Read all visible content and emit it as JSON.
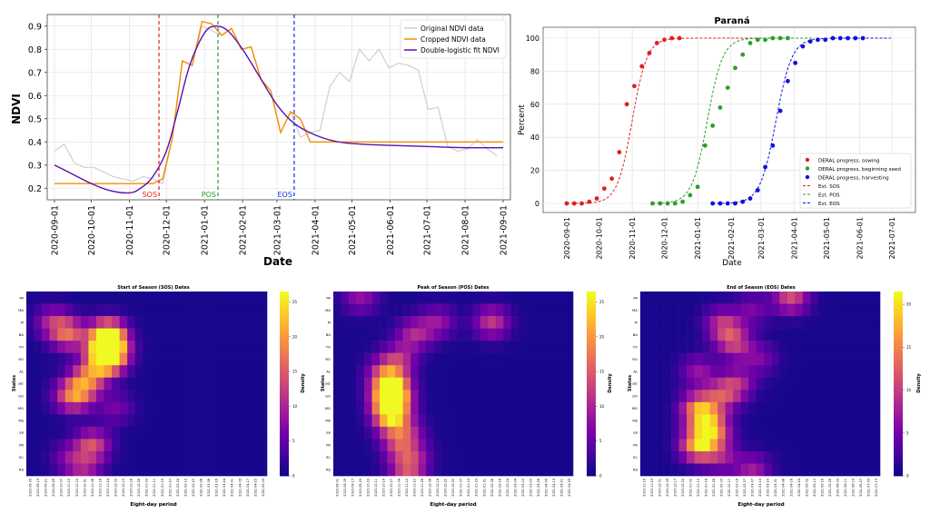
{
  "chart_data": [
    {
      "id": "ndvi",
      "type": "line",
      "xlabel": "Date",
      "ylabel": "NDVI",
      "ylim": [
        0.15,
        0.95
      ],
      "xlim": [
        "2020-09-01",
        "2021-09-01"
      ],
      "x_ticks": [
        "2020-09-01",
        "2020-10-01",
        "2020-11-01",
        "2020-12-01",
        "2021-01-01",
        "2021-02-01",
        "2021-03-01",
        "2021-04-01",
        "2021-05-01",
        "2021-06-01",
        "2021-07-01",
        "2021-08-01",
        "2021-09-01"
      ],
      "y_ticks": [
        0.2,
        0.3,
        0.4,
        0.5,
        0.6,
        0.7,
        0.8,
        0.9
      ],
      "legend_position": "top-right",
      "series": [
        {
          "name": "Original NDVI data",
          "color": "#cfcfcf",
          "x": [
            "2020-09-01",
            "2020-09-09",
            "2020-09-17",
            "2020-09-25",
            "2020-10-03",
            "2020-10-11",
            "2020-10-19",
            "2020-10-27",
            "2020-11-04",
            "2020-11-12",
            "2020-11-20",
            "2020-11-28",
            "2020-12-06",
            "2020-12-14",
            "2020-12-22",
            "2020-12-30",
            "2021-01-07",
            "2021-01-15",
            "2021-01-23",
            "2021-01-31",
            "2021-02-08",
            "2021-02-16",
            "2021-02-24",
            "2021-03-04",
            "2021-03-12",
            "2021-03-20",
            "2021-03-28",
            "2021-04-05",
            "2021-04-13",
            "2021-04-21",
            "2021-04-29",
            "2021-05-07",
            "2021-05-15",
            "2021-05-23",
            "2021-05-31",
            "2021-06-08",
            "2021-06-16",
            "2021-06-24",
            "2021-07-02",
            "2021-07-10",
            "2021-07-18",
            "2021-07-26",
            "2021-08-03",
            "2021-08-11",
            "2021-08-19",
            "2021-08-27"
          ],
          "y": [
            0.36,
            0.39,
            0.31,
            0.29,
            0.29,
            0.27,
            0.25,
            0.24,
            0.23,
            0.25,
            0.24,
            0.22,
            0.42,
            0.75,
            0.73,
            0.9,
            0.88,
            0.86,
            0.89,
            0.8,
            0.81,
            0.67,
            0.62,
            0.44,
            0.53,
            0.42,
            0.44,
            0.45,
            0.64,
            0.7,
            0.66,
            0.8,
            0.75,
            0.8,
            0.72,
            0.74,
            0.73,
            0.71,
            0.54,
            0.55,
            0.38,
            0.36,
            0.37,
            0.41,
            0.37,
            0.34
          ]
        },
        {
          "name": "Cropped NDVI data",
          "color": "#f28e00",
          "x": [
            "2020-09-01",
            "2020-11-20",
            "2020-11-28",
            "2020-12-06",
            "2020-12-14",
            "2020-12-22",
            "2020-12-30",
            "2021-01-07",
            "2021-01-15",
            "2021-01-23",
            "2021-01-31",
            "2021-02-08",
            "2021-02-16",
            "2021-02-24",
            "2021-03-04",
            "2021-03-12",
            "2021-03-20",
            "2021-03-28",
            "2021-09-01"
          ],
          "y": [
            0.22,
            0.22,
            0.24,
            0.42,
            0.75,
            0.73,
            0.92,
            0.91,
            0.86,
            0.89,
            0.8,
            0.81,
            0.67,
            0.62,
            0.44,
            0.53,
            0.5,
            0.4,
            0.4
          ]
        },
        {
          "name": "Double-logistic fit NDVI",
          "color": "#5b0fb0",
          "x": [
            "2020-09-01",
            "2020-09-16",
            "2020-10-01",
            "2020-10-16",
            "2020-11-01",
            "2020-11-10",
            "2020-11-20",
            "2020-12-01",
            "2020-12-10",
            "2020-12-20",
            "2021-01-01",
            "2021-01-10",
            "2021-01-20",
            "2021-02-01",
            "2021-02-15",
            "2021-03-01",
            "2021-03-15",
            "2021-04-01",
            "2021-04-20",
            "2021-05-10",
            "2021-06-01",
            "2021-07-01",
            "2021-08-01",
            "2021-09-01"
          ],
          "y": [
            0.3,
            0.26,
            0.22,
            0.19,
            0.18,
            0.2,
            0.25,
            0.36,
            0.53,
            0.73,
            0.87,
            0.9,
            0.88,
            0.8,
            0.68,
            0.56,
            0.48,
            0.43,
            0.4,
            0.39,
            0.385,
            0.38,
            0.375,
            0.375
          ]
        }
      ],
      "markers": [
        {
          "label": "SOS",
          "date": "2020-11-25",
          "color": "#e02020"
        },
        {
          "label": "POS",
          "date": "2021-01-12",
          "color": "#2a9a2a"
        },
        {
          "label": "EOS",
          "date": "2021-03-15",
          "color": "#1030e0"
        }
      ]
    },
    {
      "id": "parana",
      "type": "scatter",
      "title": "Paraná",
      "xlabel": "Date",
      "ylabel": "Percent",
      "ylim": [
        0,
        100
      ],
      "xlim": [
        "2020-09-01",
        "2021-07-01"
      ],
      "x_ticks": [
        "2020-09-01",
        "2020-10-01",
        "2020-11-01",
        "2020-12-01",
        "2021-01-01",
        "2021-02-01",
        "2021-03-01",
        "2021-04-01",
        "2021-05-01",
        "2021-06-01",
        "2021-07-01"
      ],
      "y_ticks": [
        0,
        20,
        40,
        60,
        80,
        100
      ],
      "legend_position": "lower-right",
      "series": [
        {
          "name": "DERAL progress, sowing",
          "color": "#e02020",
          "x": [
            "2020-09-01",
            "2020-09-08",
            "2020-09-15",
            "2020-09-22",
            "2020-09-29",
            "2020-10-06",
            "2020-10-13",
            "2020-10-20",
            "2020-10-27",
            "2020-11-03",
            "2020-11-10",
            "2020-11-17",
            "2020-11-24",
            "2020-12-01",
            "2020-12-08",
            "2020-12-15"
          ],
          "y": [
            0,
            0,
            0,
            1,
            3,
            9,
            15,
            31,
            60,
            71,
            83,
            91,
            97,
            99,
            100,
            100
          ]
        },
        {
          "name": "DERAL progress, beginning seed",
          "color": "#2aa02a",
          "x": [
            "2020-11-20",
            "2020-11-27",
            "2020-12-04",
            "2020-12-11",
            "2020-12-18",
            "2020-12-25",
            "2021-01-01",
            "2021-01-08",
            "2021-01-15",
            "2021-01-22",
            "2021-01-29",
            "2021-02-05",
            "2021-02-12",
            "2021-02-19",
            "2021-02-26",
            "2021-03-05",
            "2021-03-12",
            "2021-03-19",
            "2021-03-26"
          ],
          "y": [
            0,
            0,
            0,
            0,
            1,
            5,
            10,
            35,
            47,
            58,
            70,
            82,
            90,
            97,
            99,
            99,
            100,
            100,
            100
          ]
        },
        {
          "name": "DERAL progress, harvesting",
          "color": "#1010e0",
          "x": [
            "2021-01-15",
            "2021-01-22",
            "2021-01-29",
            "2021-02-05",
            "2021-02-12",
            "2021-02-19",
            "2021-02-26",
            "2021-03-05",
            "2021-03-12",
            "2021-03-19",
            "2021-03-26",
            "2021-04-02",
            "2021-04-09",
            "2021-04-16",
            "2021-04-23",
            "2021-04-30",
            "2021-05-07",
            "2021-05-14",
            "2021-05-21",
            "2021-05-28",
            "2021-06-04"
          ],
          "y": [
            0,
            0,
            0,
            0,
            1,
            3,
            8,
            22,
            35,
            56,
            74,
            85,
            95,
            98,
            99,
            99,
            100,
            100,
            100,
            100,
            100
          ]
        }
      ],
      "fits": [
        {
          "name": "Est. SOS",
          "color": "#e02020",
          "mid": "2020-11-01",
          "k": 0.145,
          "start": "2020-09-01",
          "end": "2021-03-20"
        },
        {
          "name": "Est. POS",
          "color": "#2aa02a",
          "mid": "2021-01-10",
          "k": 0.14,
          "start": "2020-11-20",
          "end": "2021-04-20"
        },
        {
          "name": "Est. EOS",
          "color": "#1010e0",
          "mid": "2021-03-15",
          "k": 0.135,
          "start": "2021-01-15",
          "end": "2021-06-30"
        }
      ]
    },
    {
      "id": "heat_sos",
      "type": "heatmap",
      "title": "Start of Season (SOS) Dates",
      "xlabel": "Eight-day period",
      "ylabel": "States",
      "colorbar_label": "Density",
      "colorbar_ticks": [
        "0",
        "5",
        "10",
        "15",
        "20",
        "25"
      ],
      "rows": [
        "PA",
        "MA",
        "PI",
        "BA",
        "TO",
        "RO",
        "AL",
        "MT",
        "GO",
        "MG",
        "MS",
        "SP",
        "PR",
        "SC",
        "RS"
      ],
      "x_ticks": [
        "2020-09-05",
        "2020-09-13",
        "2020-09-21",
        "2020-09-29",
        "2020-10-07",
        "2020-10-15",
        "2020-10-23",
        "2020-10-31",
        "2020-11-08",
        "2020-11-16",
        "2020-11-24",
        "2020-12-02",
        "2020-12-10",
        "2020-12-18",
        "2020-12-26",
        "2021-01-03",
        "2021-01-11",
        "2021-01-19",
        "2021-01-27",
        "2021-02-04",
        "2021-02-12",
        "2021-02-20",
        "2021-02-28",
        "2021-03-08",
        "2021-03-16",
        "2021-03-24",
        "2021-04-01",
        "2021-04-09",
        "2021-04-17",
        "2021-04-25",
        "2021-05-03"
      ],
      "hotspots": [
        [
          3,
          10,
          22
        ],
        [
          4,
          10,
          28
        ],
        [
          5,
          10,
          24
        ],
        [
          3,
          5,
          15
        ],
        [
          6,
          8,
          10
        ],
        [
          7,
          7,
          12
        ],
        [
          8,
          6,
          10
        ],
        [
          2,
          3,
          10
        ],
        [
          9,
          11,
          6
        ],
        [
          8,
          5,
          8
        ],
        [
          14,
          7,
          8
        ],
        [
          12,
          8,
          14
        ],
        [
          13,
          5,
          6
        ]
      ]
    },
    {
      "id": "heat_pos",
      "type": "heatmap",
      "title": "Peak of Season (POS) Dates",
      "xlabel": "Eight-day period",
      "ylabel": "States",
      "colorbar_label": "Density",
      "colorbar_ticks": [
        "0",
        "5",
        "10",
        "15",
        "20",
        "25"
      ],
      "rows": [
        "PA",
        "MA",
        "PI",
        "BA",
        "TO",
        "RO",
        "AL",
        "MT",
        "GO",
        "MG",
        "MS",
        "SP",
        "PR",
        "SC",
        "RS"
      ],
      "x_ticks": [
        "2020-09-01",
        "2020-09-09",
        "2020-09-17",
        "2020-09-25",
        "2020-10-03",
        "2020-10-11",
        "2020-10-19",
        "2020-10-27",
        "2020-11-04",
        "2020-11-12",
        "2020-11-20",
        "2020-11-28",
        "2020-12-06",
        "2020-12-14",
        "2020-12-22",
        "2020-12-30",
        "2021-01-07",
        "2021-01-15",
        "2021-01-23",
        "2021-01-31",
        "2021-02-08",
        "2021-02-16",
        "2021-02-24",
        "2021-03-04",
        "2021-03-12",
        "2021-03-20",
        "2021-03-28",
        "2021-04-05",
        "2021-04-13",
        "2021-04-21",
        "2021-04-29"
      ],
      "hotspots": [
        [
          8,
          7,
          25
        ],
        [
          7,
          7,
          18
        ],
        [
          9,
          7,
          18
        ],
        [
          10,
          7,
          14
        ],
        [
          5,
          8,
          10
        ],
        [
          3,
          10,
          10
        ],
        [
          2,
          13,
          8
        ],
        [
          14,
          9,
          12
        ],
        [
          13,
          10,
          6
        ],
        [
          11,
          9,
          8
        ],
        [
          6,
          6,
          8
        ],
        [
          0,
          3,
          8
        ],
        [
          2,
          20,
          12
        ],
        [
          12,
          8,
          10
        ]
      ]
    },
    {
      "id": "heat_eos",
      "type": "heatmap",
      "title": "End of Season (EOS) Dates",
      "xlabel": "Eight-day period",
      "ylabel": "States",
      "colorbar_label": "Density",
      "colorbar_ticks": [
        "0",
        "5",
        "10",
        "15",
        "20"
      ],
      "rows": [
        "PA",
        "MA",
        "PI",
        "BA",
        "TO",
        "RO",
        "AL",
        "MT",
        "GO",
        "MG",
        "MS",
        "SP",
        "PR",
        "SC",
        "RS"
      ],
      "x_ticks": [
        "2020-11-15",
        "2020-11-23",
        "2020-12-01",
        "2020-12-09",
        "2020-12-17",
        "2020-12-25",
        "2021-01-02",
        "2021-01-10",
        "2021-01-18",
        "2021-01-26",
        "2021-02-03",
        "2021-02-11",
        "2021-02-19",
        "2021-02-27",
        "2021-03-07",
        "2021-03-15",
        "2021-03-23",
        "2021-03-31",
        "2021-04-08",
        "2021-04-16",
        "2021-04-24",
        "2021-05-02",
        "2021-05-10",
        "2021-05-18",
        "2021-05-26",
        "2021-06-03",
        "2021-06-11",
        "2021-06-19",
        "2021-06-27",
        "2021-07-05",
        "2021-07-13"
      ],
      "hotspots": [
        [
          12,
          7,
          22
        ],
        [
          9,
          7,
          16
        ],
        [
          10,
          8,
          14
        ],
        [
          8,
          10,
          12
        ],
        [
          11,
          9,
          14
        ],
        [
          7,
          12,
          10
        ],
        [
          2,
          10,
          8
        ],
        [
          3,
          11,
          9
        ],
        [
          4,
          12,
          8
        ],
        [
          1,
          14,
          6
        ],
        [
          0,
          19,
          14
        ],
        [
          5,
          15,
          6
        ],
        [
          13,
          10,
          8
        ],
        [
          14,
          14,
          9
        ],
        [
          6,
          7,
          8
        ]
      ]
    }
  ],
  "colors": {
    "plasma": [
      "#0d0887",
      "#46039f",
      "#7201a8",
      "#9c179e",
      "#bd3786",
      "#d8576b",
      "#ed7953",
      "#fb9f3a",
      "#fdca26",
      "#f0f921"
    ],
    "grid": "#dddddd",
    "axes": "#333333"
  }
}
